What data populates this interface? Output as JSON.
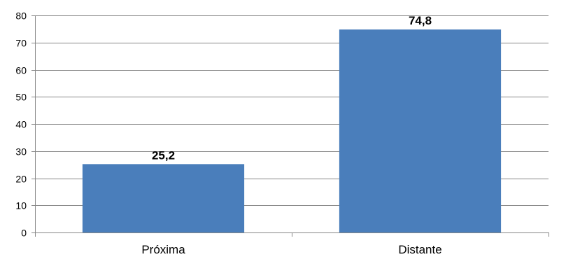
{
  "chart_data": {
    "type": "bar",
    "categories": [
      "Próxima",
      "Distante"
    ],
    "values": [
      25.2,
      74.8
    ],
    "data_labels": [
      "25,2",
      "74,8"
    ],
    "y_ticks": [
      "0",
      "10",
      "20",
      "30",
      "40",
      "50",
      "60",
      "70",
      "80"
    ],
    "ylim": [
      0,
      80
    ],
    "grid": true,
    "legend": "none",
    "bar_color": "#4a7ebb",
    "grid_color": "#878787",
    "axis_color": "#878787"
  }
}
